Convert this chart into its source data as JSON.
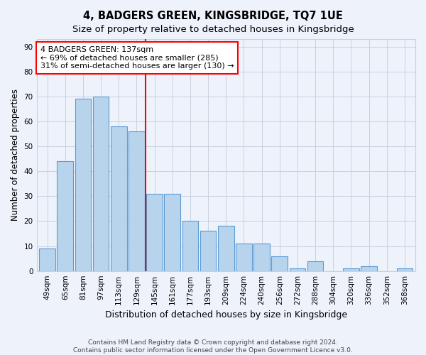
{
  "title": "4, BADGERS GREEN, KINGSBRIDGE, TQ7 1UE",
  "subtitle": "Size of property relative to detached houses in Kingsbridge",
  "xlabel": "Distribution of detached houses by size in Kingsbridge",
  "ylabel": "Number of detached properties",
  "categories": [
    "49sqm",
    "65sqm",
    "81sqm",
    "97sqm",
    "113sqm",
    "129sqm",
    "145sqm",
    "161sqm",
    "177sqm",
    "193sqm",
    "209sqm",
    "224sqm",
    "240sqm",
    "256sqm",
    "272sqm",
    "288sqm",
    "304sqm",
    "320sqm",
    "336sqm",
    "352sqm",
    "368sqm"
  ],
  "values": [
    9,
    44,
    69,
    70,
    58,
    56,
    31,
    31,
    20,
    16,
    18,
    11,
    11,
    6,
    1,
    4,
    0,
    1,
    2,
    0,
    1
  ],
  "bar_color": "#b8d4ed",
  "bar_edge_color": "#5b9bd5",
  "vline_x": 5.5,
  "vline_color": "red",
  "annotation_line1": "4 BADGERS GREEN: 137sqm",
  "annotation_line2": "← 69% of detached houses are smaller (285)",
  "annotation_line3": "31% of semi-detached houses are larger (130) →",
  "annotation_box_color": "white",
  "annotation_box_edge_color": "red",
  "ylim": [
    0,
    93
  ],
  "yticks": [
    0,
    10,
    20,
    30,
    40,
    50,
    60,
    70,
    80,
    90
  ],
  "footer_line1": "Contains HM Land Registry data © Crown copyright and database right 2024.",
  "footer_line2": "Contains public sector information licensed under the Open Government Licence v3.0.",
  "background_color": "#eef2fb",
  "grid_color": "#c8d0e0",
  "title_fontsize": 10.5,
  "subtitle_fontsize": 9.5,
  "xlabel_fontsize": 9,
  "ylabel_fontsize": 8.5,
  "tick_fontsize": 7.5,
  "annotation_fontsize": 8,
  "footer_fontsize": 6.5
}
